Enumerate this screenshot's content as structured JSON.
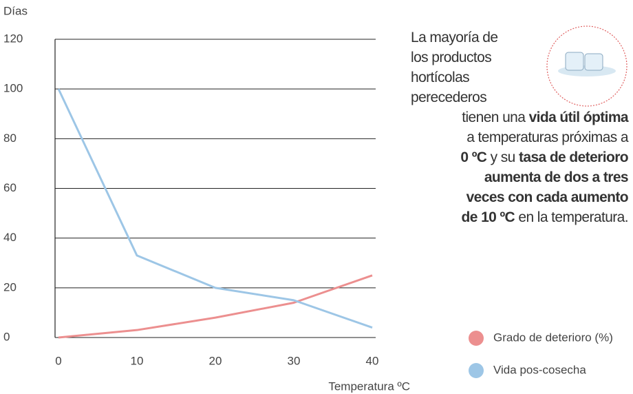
{
  "chart_data": {
    "type": "line",
    "y_label": "Días",
    "x_label": "Temperatura ºC",
    "x": [
      0,
      10,
      20,
      30,
      40
    ],
    "xlim": [
      0,
      40
    ],
    "xticks": [
      0,
      10,
      20,
      30,
      40
    ],
    "ylim": [
      0,
      120
    ],
    "yticks": [
      0,
      20,
      40,
      60,
      80,
      100,
      120
    ],
    "grid": true,
    "series": [
      {
        "name": "Grado de deterioro (%)",
        "color": "#ec8f8f",
        "values": [
          0,
          3,
          8,
          14,
          25
        ]
      },
      {
        "name": "Vida pos-cosecha",
        "color": "#9dc6e6",
        "values": [
          100,
          33,
          20,
          15,
          4
        ]
      }
    ],
    "annotation": [
      [
        {
          "text": "La mayoría de",
          "bold": false
        }
      ],
      [
        {
          "text": "los productos",
          "bold": false
        }
      ],
      [
        {
          "text": "hortícolas",
          "bold": false
        }
      ],
      [
        {
          "text": "perecederos",
          "bold": false
        }
      ],
      [
        {
          "text": "tienen una ",
          "bold": false
        },
        {
          "text": "vida útil óptima",
          "bold": true
        }
      ],
      [
        {
          "text": "a temperaturas próximas a",
          "bold": false
        }
      ],
      [
        {
          "text": "0 ºC",
          "bold": true
        },
        {
          "text": " y su ",
          "bold": false
        },
        {
          "text": "tasa de deterioro",
          "bold": true
        }
      ],
      [
        {
          "text": "aumenta de dos a tres",
          "bold": true
        }
      ],
      [
        {
          "text": "veces con cada aumento",
          "bold": true
        }
      ],
      [
        {
          "text": "de 10 ºC",
          "bold": true
        },
        {
          "text": " en la temperatura.",
          "bold": false
        }
      ]
    ]
  }
}
